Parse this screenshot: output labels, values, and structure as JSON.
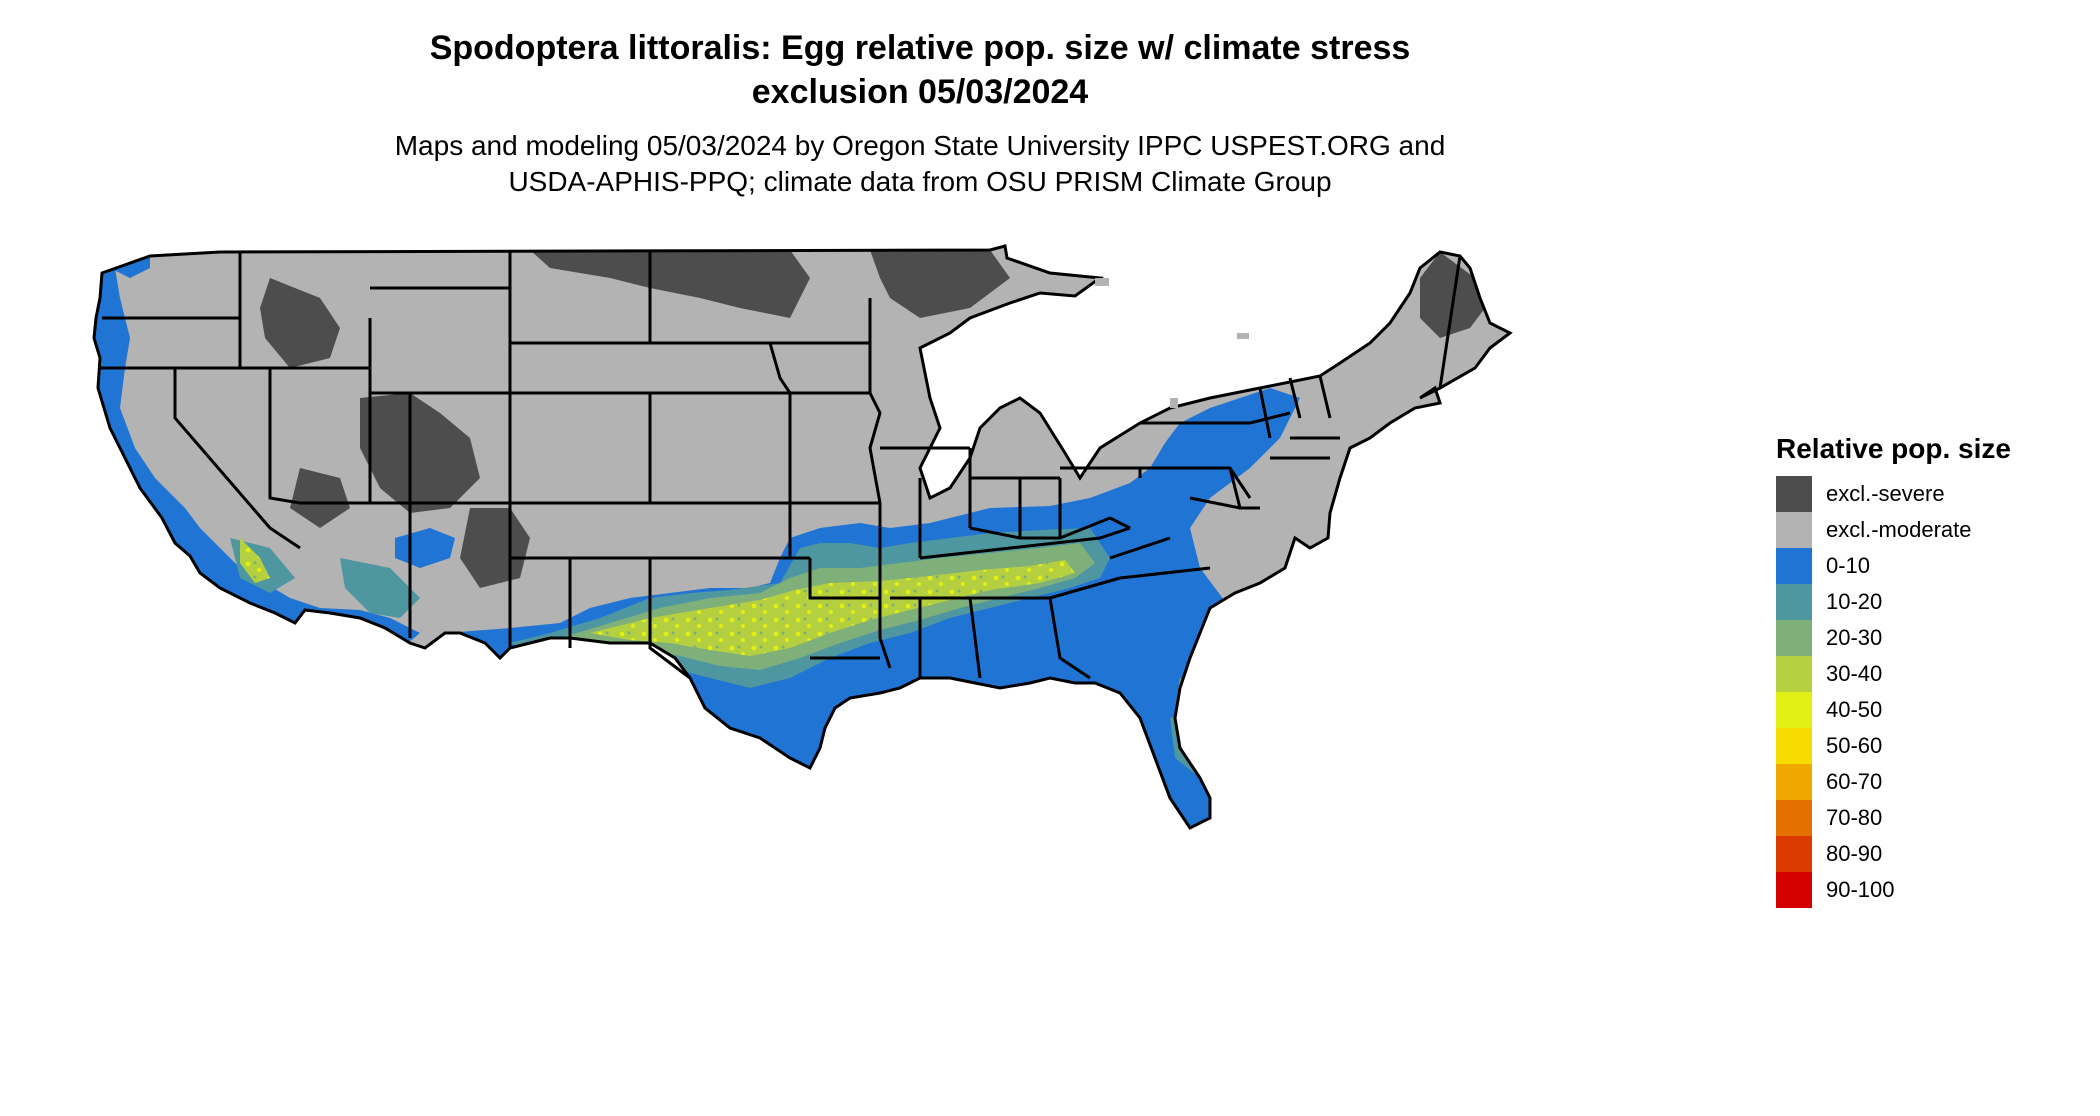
{
  "title": {
    "line1": "Spodoptera littoralis: Egg relative pop. size w/ climate stress",
    "line2": "exclusion 05/03/2024"
  },
  "subtitle": {
    "line1": "Maps and modeling 05/03/2024 by Oregon State University IPPC USPEST.ORG and",
    "line2": "USDA-APHIS-PPQ; climate data from OSU PRISM Climate Group"
  },
  "legend": {
    "title": "Relative pop. size",
    "items": [
      {
        "label": "excl.-severe",
        "color": "#4d4d4d"
      },
      {
        "label": "excl.-moderate",
        "color": "#b3b3b3"
      },
      {
        "label": "0-10",
        "color": "#1f74d4"
      },
      {
        "label": "10-20",
        "color": "#4e96a0"
      },
      {
        "label": "20-30",
        "color": "#80b07a"
      },
      {
        "label": "30-40",
        "color": "#b4cf40"
      },
      {
        "label": "40-50",
        "color": "#e2ef14"
      },
      {
        "label": "50-60",
        "color": "#f6dc00"
      },
      {
        "label": "60-70",
        "color": "#f0a800"
      },
      {
        "label": "70-80",
        "color": "#e47000"
      },
      {
        "label": "80-90",
        "color": "#dc3b00"
      },
      {
        "label": "90-100",
        "color": "#d40000"
      }
    ]
  },
  "map": {
    "colors": {
      "severe": "#4d4d4d",
      "moderate": "#b3b3b3",
      "c0_10": "#1f74d4",
      "c10_20": "#4e96a0",
      "c20_30": "#80b07a",
      "c30_40": "#b4cf40",
      "c40_50": "#e2ef14",
      "border": "#000000"
    }
  }
}
